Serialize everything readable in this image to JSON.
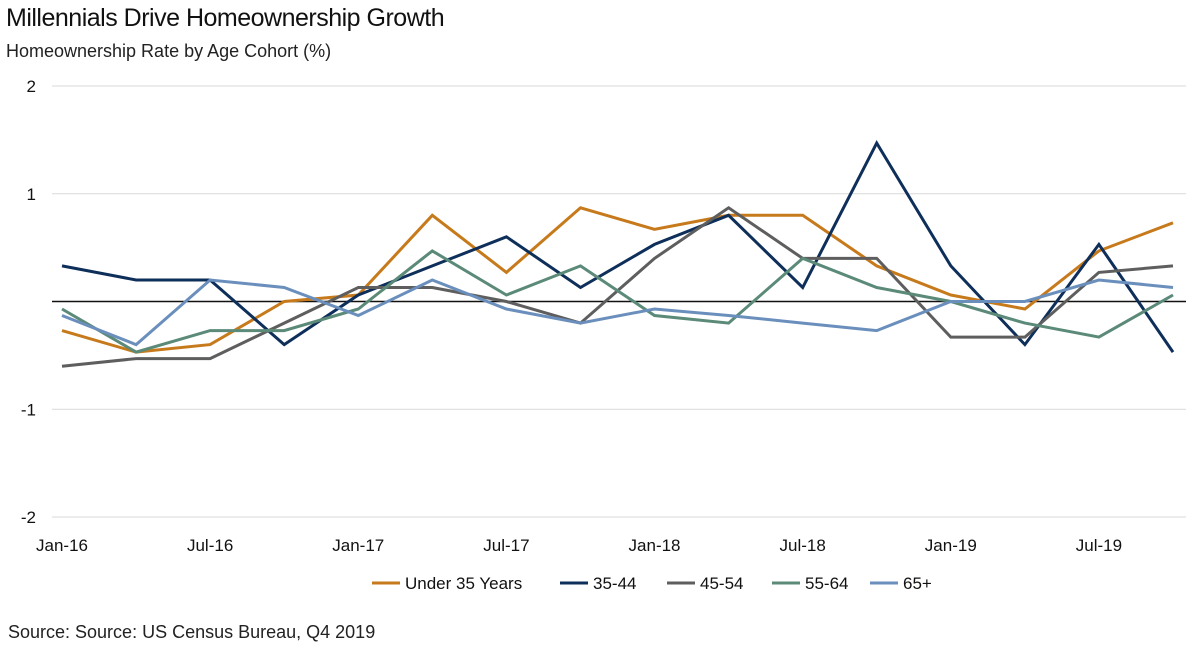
{
  "chart_data": {
    "type": "line",
    "title": "Millennials Drive Homeownership Growth",
    "subtitle": "Homeownership Rate by Age Cohort (%)",
    "source": "Source: Source: US Census Bureau, Q4 2019",
    "x": [
      "Jan-16",
      "Apr-16",
      "Jul-16",
      "Oct-16",
      "Jan-17",
      "Apr-17",
      "Jul-17",
      "Oct-17",
      "Jan-18",
      "Apr-18",
      "Jul-18",
      "Oct-18",
      "Jan-19",
      "Apr-19",
      "Jul-19",
      "Oct-19"
    ],
    "x_tick_labels": [
      "Jan-16",
      "Jul-16",
      "Jan-17",
      "Jul-17",
      "Jan-18",
      "Jul-18",
      "Jan-19",
      "Jul-19"
    ],
    "y_tick_labels": [
      "2",
      "1",
      "-1",
      "-2"
    ],
    "y_ticks": [
      2,
      1,
      -1,
      -2
    ],
    "ylim": [
      -2,
      2
    ],
    "zero_line": true,
    "grid": true,
    "legend_position": "bottom",
    "series": [
      {
        "name": "Under 35 Years",
        "color": "#c77a1b",
        "values": [
          -0.27,
          -0.47,
          -0.4,
          0.0,
          0.06,
          0.8,
          0.27,
          0.87,
          0.67,
          0.8,
          0.8,
          0.33,
          0.06,
          -0.07,
          0.47,
          0.73
        ]
      },
      {
        "name": "35-44",
        "color": "#0e2f5a",
        "values": [
          0.33,
          0.2,
          0.2,
          -0.4,
          0.06,
          0.33,
          0.6,
          0.13,
          0.53,
          0.8,
          0.13,
          1.47,
          0.33,
          -0.4,
          0.53,
          -0.47
        ]
      },
      {
        "name": "45-54",
        "color": "#5e5e5e",
        "values": [
          -0.6,
          -0.53,
          -0.53,
          -0.2,
          0.13,
          0.13,
          0.0,
          -0.2,
          0.4,
          0.87,
          0.4,
          0.4,
          -0.33,
          -0.33,
          0.27,
          0.33
        ]
      },
      {
        "name": "55-64",
        "color": "#5b8a78",
        "values": [
          -0.07,
          -0.47,
          -0.27,
          -0.27,
          -0.07,
          0.47,
          0.06,
          0.33,
          -0.13,
          -0.2,
          0.4,
          0.13,
          0.0,
          -0.2,
          -0.33,
          0.06
        ]
      },
      {
        "name": "65+",
        "color": "#6a8fbc",
        "values": [
          -0.13,
          -0.4,
          0.2,
          0.13,
          -0.13,
          0.2,
          -0.07,
          -0.2,
          -0.07,
          -0.13,
          -0.2,
          -0.27,
          0.0,
          0.0,
          0.2,
          0.13
        ]
      }
    ]
  }
}
